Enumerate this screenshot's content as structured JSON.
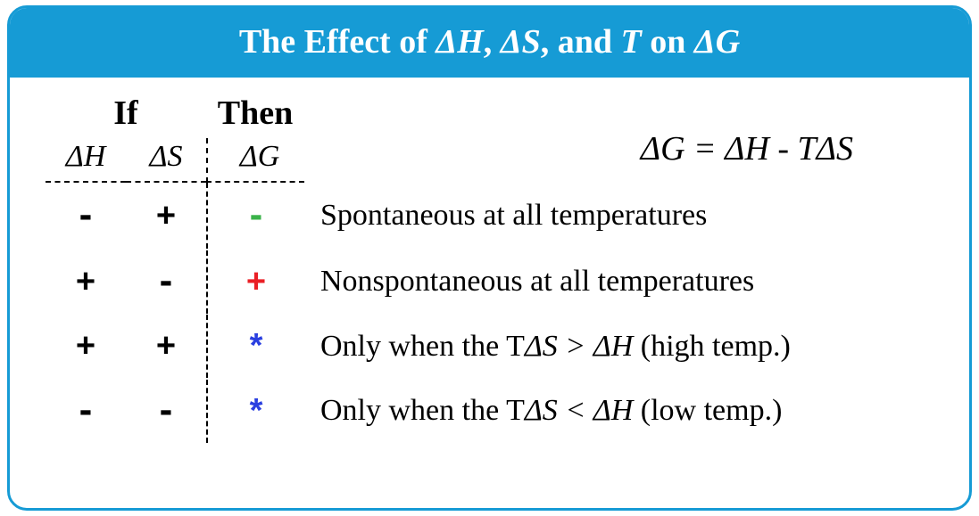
{
  "colors": {
    "brand": "#169bd5",
    "green": "#3bb34a",
    "red": "#ea1f25",
    "blue": "#2a3fe0",
    "text": "#000000",
    "bg": "#ffffff"
  },
  "header": {
    "prefix": "The Effect of ",
    "dH": "ΔH",
    "sep1": ", ",
    "dS": "ΔS",
    "sep2": ", and ",
    "T": "T",
    "sep3": " on ",
    "dG": "ΔG"
  },
  "equation": "ΔG = ΔH - TΔS",
  "labels": {
    "if": "If",
    "then": "Then",
    "dH": "ΔH",
    "dS": "ΔS",
    "dG": "ΔG"
  },
  "rows": [
    {
      "dH": "-",
      "dS": "+",
      "dG": "-",
      "dG_color": "green",
      "desc_pre": "Spontaneous at all temperatures",
      "desc_mid": "",
      "desc_post": ""
    },
    {
      "dH": "+",
      "dS": "-",
      "dG": "+",
      "dG_color": "red",
      "desc_pre": "Nonspontaneous at all temperatures",
      "desc_mid": "",
      "desc_post": ""
    },
    {
      "dH": "+",
      "dS": "+",
      "dG": "*",
      "dG_color": "blue",
      "desc_pre": "Only when the T",
      "desc_mid": "ΔS > ΔH",
      "desc_post": " (high temp.)"
    },
    {
      "dH": "-",
      "dS": "-",
      "dG": "*",
      "dG_color": "blue",
      "desc_pre": "Only when the T",
      "desc_mid": "ΔS < ΔH",
      "desc_post": " (low temp.)"
    }
  ]
}
